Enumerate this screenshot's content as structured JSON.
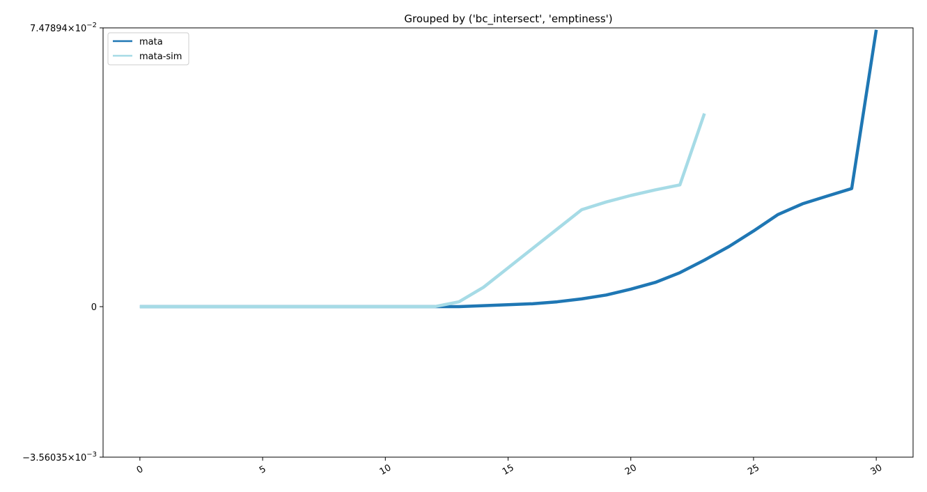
{
  "chart_data": {
    "type": "line",
    "title": "Grouped by ('bc_intersect', 'emptiness')",
    "xlabel": "",
    "ylabel": "",
    "xlim": [
      -1.5,
      31.5
    ],
    "ylim": [
      -0.00356035,
      0.0747894
    ],
    "yscale": "symlog",
    "legend_position": "top-left",
    "grid": false,
    "x_ticks": [
      0,
      5,
      10,
      15,
      20,
      25,
      30
    ],
    "x_tick_labels": [
      "0",
      "5",
      "10",
      "15",
      "20",
      "25",
      "30"
    ],
    "y_ticks": [
      {
        "value": 0.0747894,
        "mantissa": "7.47894",
        "exponent": "−2"
      },
      {
        "value": 0,
        "mantissa": "0",
        "exponent": ""
      },
      {
        "value": -0.00356035,
        "mantissa": "−3.56035",
        "exponent": "−3"
      }
    ],
    "series": [
      {
        "name": "mata",
        "color": "#1f77b4",
        "x": [
          0,
          1,
          2,
          3,
          4,
          5,
          6,
          7,
          8,
          9,
          10,
          11,
          12,
          13,
          14,
          15,
          16,
          17,
          18,
          19,
          20,
          21,
          22,
          23,
          24,
          25,
          26,
          27,
          28,
          29,
          30
        ],
        "y": [
          0,
          0,
          0,
          0,
          0,
          0,
          0,
          0,
          0,
          0,
          0,
          0,
          0,
          0,
          1e-05,
          2e-05,
          3e-05,
          5e-05,
          8e-05,
          0.00012,
          0.00018,
          0.00025,
          0.00035,
          0.00048,
          0.00062,
          0.00078,
          0.00095,
          0.00115,
          0.00138,
          0.00165,
          0.0715
        ]
      },
      {
        "name": "mata-sim",
        "color": "#a6dbe6",
        "x": [
          0,
          1,
          2,
          3,
          4,
          5,
          6,
          7,
          8,
          9,
          10,
          11,
          12,
          13,
          14,
          15,
          16,
          17,
          18,
          19,
          20,
          21,
          22,
          23
        ],
        "y": [
          0,
          0,
          0,
          0,
          0,
          0,
          0,
          0,
          0,
          0,
          0,
          0,
          0,
          5e-05,
          0.0002,
          0.0004,
          0.0006,
          0.0008,
          0.001,
          0.0012,
          0.0014,
          0.0016,
          0.0018,
          0.0098
        ]
      }
    ]
  }
}
